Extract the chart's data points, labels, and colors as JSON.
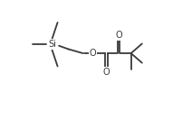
{
  "bg_color": "#ffffff",
  "line_color": "#3a3a3a",
  "text_color": "#3a3a3a",
  "line_width": 1.3,
  "font_size": 7.0,
  "figsize": [
    2.12,
    1.53
  ],
  "dpi": 100,
  "xlim": [
    0.0,
    1.0
  ],
  "ylim": [
    0.0,
    1.0
  ]
}
